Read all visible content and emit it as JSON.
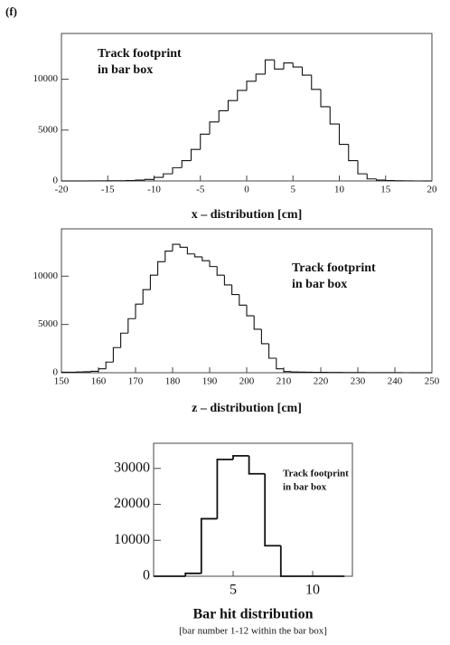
{
  "panel_label": "(f)",
  "chart_data": [
    {
      "type": "histogram",
      "xlabel": "x – distribution [cm]",
      "annotation": [
        "Track footprint",
        "in bar box"
      ],
      "bins": [
        -20,
        -19,
        -18,
        -17,
        -16,
        -15,
        -14,
        -13,
        -12,
        -11,
        -10,
        -9,
        -8,
        -7,
        -6,
        -5,
        -4,
        -3,
        -2,
        -1,
        0,
        1,
        2,
        3,
        4,
        5,
        6,
        7,
        8,
        9,
        10,
        11,
        12,
        13,
        14,
        15,
        16,
        17,
        18,
        19,
        20
      ],
      "values": [
        0,
        0,
        0,
        10,
        10,
        20,
        20,
        40,
        80,
        150,
        350,
        700,
        1300,
        2000,
        3100,
        4600,
        5800,
        6900,
        7900,
        8900,
        9800,
        10500,
        11900,
        11000,
        11600,
        11200,
        10400,
        9000,
        7300,
        5600,
        3600,
        2000,
        700,
        200,
        80,
        40,
        20,
        10,
        0,
        0
      ],
      "color": "#111111",
      "xlim": [
        -20,
        20
      ],
      "xticks": [
        -20,
        -15,
        -10,
        -5,
        0,
        5,
        10,
        15,
        20
      ],
      "ylim": [
        0,
        14500
      ],
      "yticks": [
        0,
        5000,
        10000
      ]
    },
    {
      "type": "histogram",
      "xlabel": "z – distribution [cm]",
      "annotation": [
        "Track footprint",
        "in bar box"
      ],
      "bins": [
        150,
        152,
        154,
        156,
        158,
        160,
        162,
        164,
        166,
        168,
        170,
        172,
        174,
        176,
        178,
        180,
        182,
        184,
        186,
        188,
        190,
        192,
        194,
        196,
        198,
        200,
        202,
        204,
        206,
        208,
        210,
        212,
        214,
        216,
        218,
        220,
        222,
        224,
        226,
        228,
        230,
        232,
        234,
        236,
        238,
        240,
        242,
        244,
        246,
        248,
        250
      ],
      "values": [
        50,
        50,
        80,
        100,
        150,
        400,
        1100,
        2600,
        4100,
        5600,
        7100,
        8600,
        10100,
        11500,
        12600,
        13300,
        13000,
        12300,
        12000,
        11600,
        11000,
        10100,
        9100,
        8100,
        7000,
        5900,
        4500,
        3000,
        1500,
        400,
        120,
        80,
        60,
        50,
        40,
        40,
        30,
        30,
        20,
        20,
        20,
        10,
        10,
        10,
        10,
        10,
        0,
        0,
        0,
        0
      ],
      "color": "#111111",
      "xlim": [
        150,
        250
      ],
      "xticks": [
        150,
        160,
        170,
        180,
        190,
        200,
        210,
        220,
        230,
        240,
        250
      ],
      "ylim": [
        0,
        14900
      ],
      "yticks": [
        0,
        5000,
        10000
      ]
    },
    {
      "type": "histogram",
      "xlabel": "Bar hit distribution",
      "subtitle": "[bar number 1-12 within the bar box]",
      "annotation": [
        "Track footprint",
        "in bar box"
      ],
      "bins": [
        0,
        1,
        2,
        3,
        4,
        5,
        6,
        7,
        8,
        9,
        10,
        11,
        12
      ],
      "values": [
        0,
        0,
        800,
        16000,
        32500,
        33500,
        28500,
        8500,
        0,
        0,
        0,
        0
      ],
      "color": "#111111",
      "xlim": [
        0,
        12.5
      ],
      "xticks": [
        5,
        10
      ],
      "ylim": [
        0,
        37000
      ],
      "yticks": [
        0,
        10000,
        20000,
        30000
      ]
    }
  ]
}
